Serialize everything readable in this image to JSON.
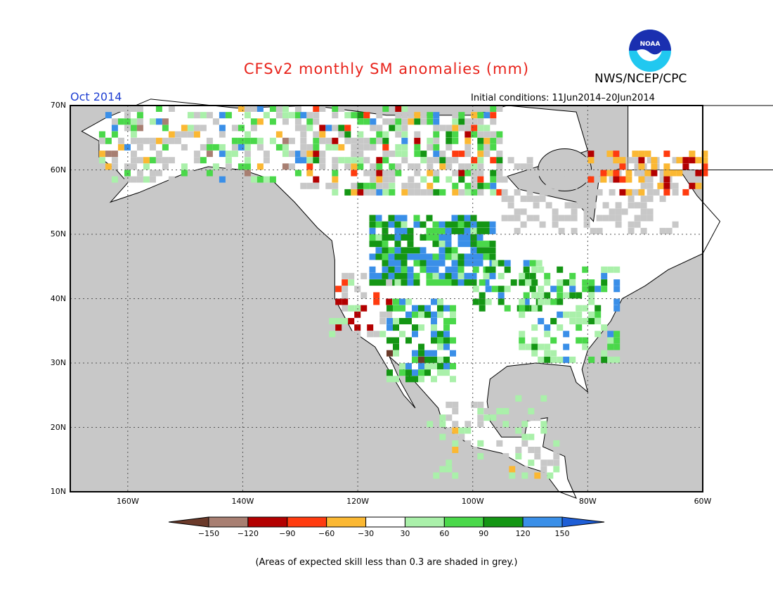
{
  "header": {
    "title": "CFSv2 monthly SM anomalies (mm)",
    "month": "Oct 2014",
    "agency": "NWS/NCEP/CPC",
    "initial_conditions": "Initial conditions: 11Jun2014–20Jun2014",
    "logo_text": "NOAA"
  },
  "axes": {
    "lat_labels": [
      "70N",
      "60N",
      "50N",
      "40N",
      "30N",
      "20N",
      "10N"
    ],
    "lon_labels": [
      "160W",
      "140W",
      "120W",
      "100W",
      "80W",
      "60W"
    ]
  },
  "colorbar": {
    "ticks": [
      "−150",
      "−120",
      "−90",
      "−60",
      "−30",
      "30",
      "60",
      "90",
      "120",
      "150"
    ],
    "colors": [
      "#6b3a2a",
      "#a87f72",
      "#b30000",
      "#ff3b0f",
      "#fbb833",
      "#ffffff",
      "#aaf0aa",
      "#4ad84a",
      "#149614",
      "#3a8fe8",
      "#1e5ed6"
    ]
  },
  "footnote": "(Areas of expected skill less than 0.3 are shaded in grey.)",
  "colors": {
    "ocean": "#c8c8c8",
    "land": "#ffffff",
    "grey_skill": "#c8c8c8"
  }
}
